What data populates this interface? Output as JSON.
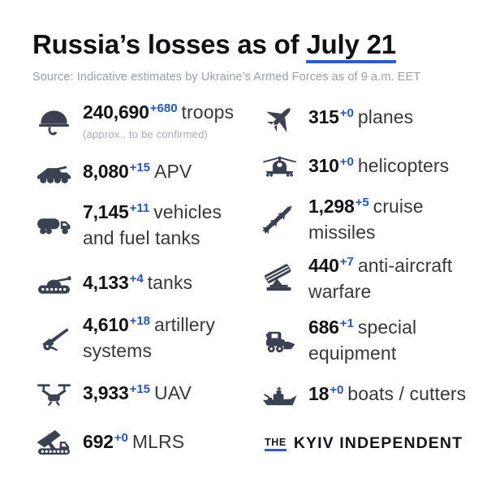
{
  "header": {
    "title_prefix": "Russia’s losses as of ",
    "title_date": "July 21",
    "source": "Source: Indicative estimates by Ukraine’s Armed Forces as of 9 a.m. EET"
  },
  "colors": {
    "accent_blue": "#2356d4",
    "underline_blue": "#2d5ad6",
    "icon_slate": "#3a4150",
    "background": "#ffffff"
  },
  "stats": {
    "left": [
      {
        "icon": "helmet-icon",
        "value": "240,690",
        "delta": "+680",
        "label": "troops",
        "note": "(approx., to be confirmed)"
      },
      {
        "icon": "apv-icon",
        "value": "8,080",
        "delta": "+15",
        "label": "APV"
      },
      {
        "icon": "fuel-truck-icon",
        "value": "7,145",
        "delta": "+11",
        "label": "vehicles and fuel tanks"
      },
      {
        "icon": "tank-icon",
        "value": "4,133",
        "delta": "+4",
        "label": "tanks"
      },
      {
        "icon": "artillery-icon",
        "value": "4,610",
        "delta": "+18",
        "label": "artillery systems"
      },
      {
        "icon": "drone-icon",
        "value": "3,933",
        "delta": "+15",
        "label": "UAV"
      },
      {
        "icon": "mlrs-icon",
        "value": "692",
        "delta": "+0",
        "label": "MLRS"
      }
    ],
    "right": [
      {
        "icon": "jet-icon",
        "value": "315",
        "delta": "+0",
        "label": "planes"
      },
      {
        "icon": "helicopter-icon",
        "value": "310",
        "delta": "+0",
        "label": "helicopters"
      },
      {
        "icon": "cruise-missile-icon",
        "value": "1,298",
        "delta": "+5",
        "label": "cruise missiles"
      },
      {
        "icon": "anti-aircraft-icon",
        "value": "440",
        "delta": "+7",
        "label": "anti-aircraft warfare"
      },
      {
        "icon": "special-equipment-icon",
        "value": "686",
        "delta": "+1",
        "label": "special equipment"
      },
      {
        "icon": "boat-icon",
        "value": "18",
        "delta": "+0",
        "label": "boats / cutters"
      }
    ]
  },
  "footer": {
    "logo_the": "THE",
    "logo_name": "KYIV INDEPENDENT"
  }
}
